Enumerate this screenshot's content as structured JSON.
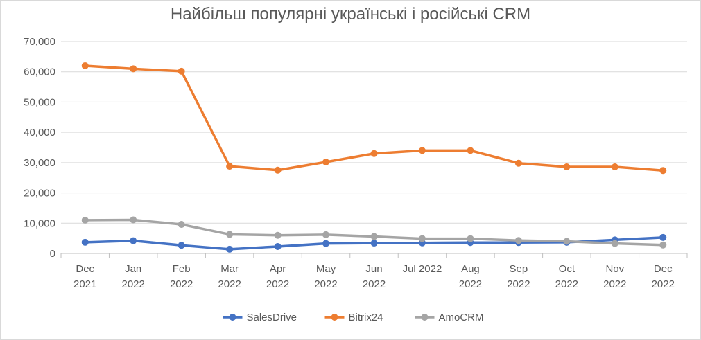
{
  "chart_data": {
    "type": "line",
    "title": "Найбільш популярні українські і російські CRM",
    "categories": [
      [
        "Dec",
        "2021"
      ],
      [
        "Jan",
        "2022"
      ],
      [
        "Feb",
        "2022"
      ],
      [
        "Mar",
        "2022"
      ],
      [
        "Apr",
        "2022"
      ],
      [
        "May",
        "2022"
      ],
      [
        "Jun",
        "2022"
      ],
      [
        "Jul 2022"
      ],
      [
        "Aug",
        "2022"
      ],
      [
        "Sep",
        "2022"
      ],
      [
        "Oct",
        "2022"
      ],
      [
        "Nov",
        "2022"
      ],
      [
        "Dec",
        "2022"
      ]
    ],
    "ylim": [
      0,
      70000
    ],
    "yticks": [
      "0",
      "10,000",
      "20,000",
      "30,000",
      "40,000",
      "50,000",
      "60,000",
      "70,000"
    ],
    "grid": true,
    "legend": "bottom",
    "series": [
      {
        "name": "SalesDrive",
        "color": "#4472C4",
        "values": [
          3700,
          4200,
          2700,
          1400,
          2300,
          3300,
          3400,
          3500,
          3600,
          3600,
          3700,
          4500,
          5300
        ]
      },
      {
        "name": "Bitrix24",
        "color": "#ED7D31",
        "values": [
          62000,
          61000,
          60200,
          28800,
          27500,
          30200,
          33000,
          34000,
          34000,
          29800,
          28600,
          28600,
          27400
        ]
      },
      {
        "name": "AmoCRM",
        "color": "#A5A5A5",
        "values": [
          11000,
          11100,
          9600,
          6300,
          6000,
          6200,
          5600,
          4900,
          4900,
          4300,
          4000,
          3300,
          2800
        ]
      }
    ]
  }
}
